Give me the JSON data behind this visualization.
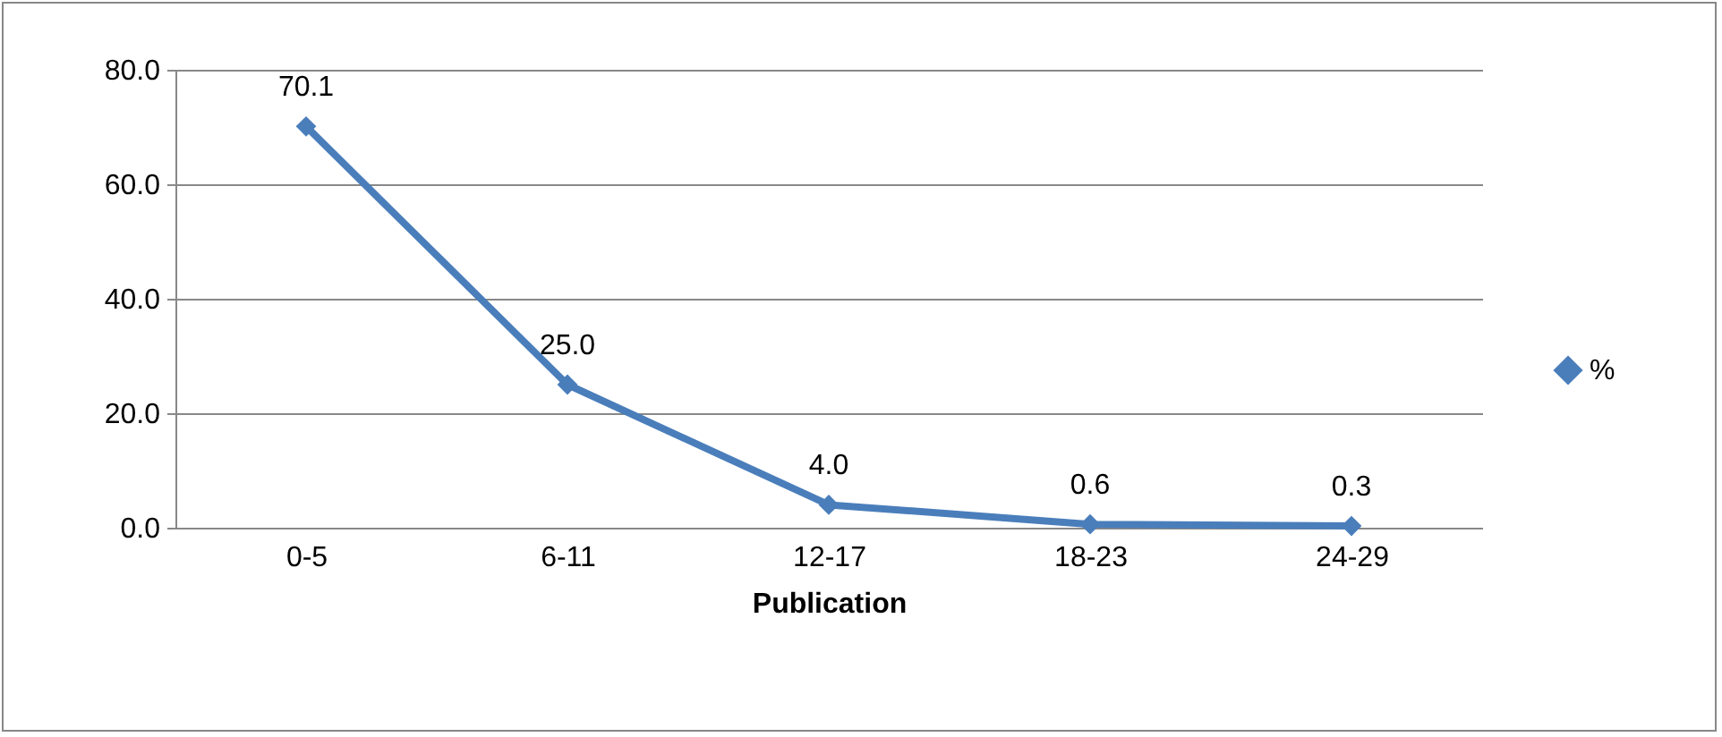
{
  "chart_data": {
    "type": "line",
    "xlabel": "Publication",
    "categories": [
      "0-5",
      "6-11",
      "12-17",
      "18-23",
      "24-29"
    ],
    "series": [
      {
        "name": "%",
        "color": "#4a7ebb",
        "values": [
          70.1,
          25.0,
          4.0,
          0.6,
          0.3
        ],
        "value_labels": [
          "70.1",
          "25.0",
          "4.0",
          "0.6",
          "0.3"
        ]
      }
    ],
    "ylim": [
      0,
      80
    ],
    "yticks": [
      {
        "value": 0,
        "label": "0.0"
      },
      {
        "value": 20,
        "label": "20.0"
      },
      {
        "value": 40,
        "label": "40.0"
      },
      {
        "value": 60,
        "label": "60.0"
      },
      {
        "value": 80,
        "label": "80.0"
      }
    ],
    "grid": "y",
    "legend": "right",
    "marker": "diamond",
    "line_style": "solid"
  }
}
